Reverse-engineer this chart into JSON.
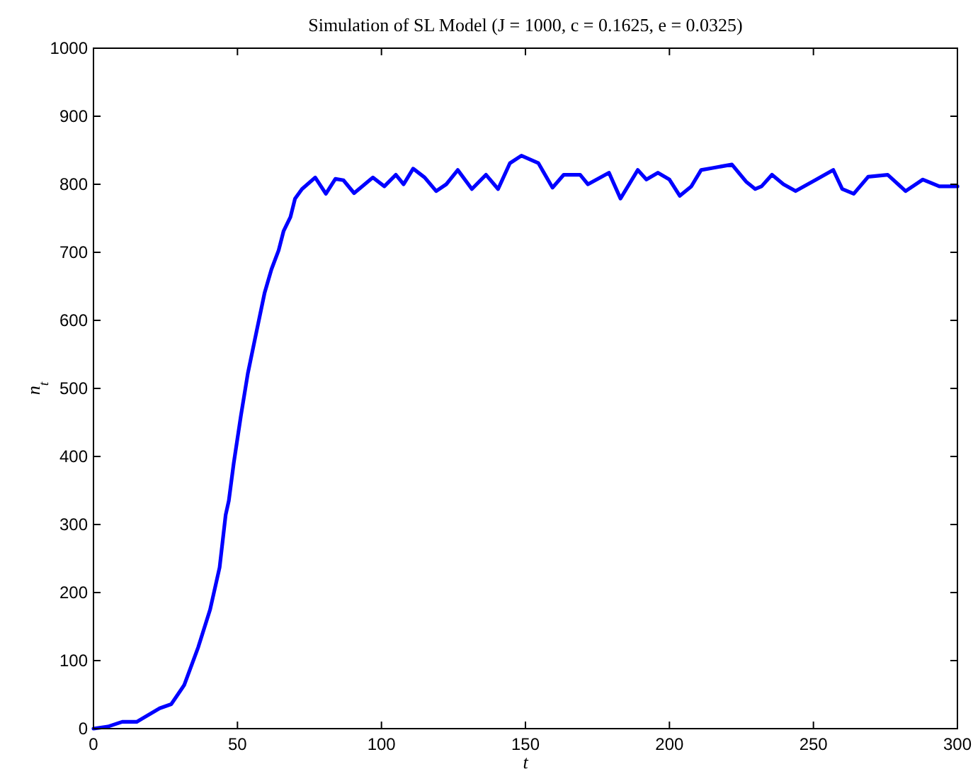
{
  "chart_data": {
    "type": "line",
    "title": "Simulation of SL Model (J = 1000, c = 0.1625, e = 0.0325)",
    "xlabel": "t",
    "ylabel": "n$_{t}$",
    "xlim": [
      0,
      300
    ],
    "ylim": [
      0,
      1000
    ],
    "xticks": [
      0,
      50,
      100,
      150,
      200,
      250,
      300
    ],
    "yticks": [
      0,
      100,
      200,
      300,
      400,
      500,
      600,
      700,
      800,
      900,
      1000
    ],
    "grid": false,
    "marker": "none",
    "line_style": "solid",
    "series": [
      {
        "color": "#0000ff",
        "x": [
          0,
          5,
          10,
          15,
          23,
          27,
          31.5,
          36.4,
          40.5,
          43.8,
          45.9,
          47,
          48.7,
          51.2,
          53.6,
          56,
          59.4,
          61.8,
          64.3,
          66,
          68.4,
          70,
          72.4,
          77,
          80.7,
          84,
          86.8,
          90.5,
          97,
          101,
          105,
          107.7,
          111,
          115,
          119,
          122.5,
          126.5,
          131.4,
          136.3,
          140.5,
          144.6,
          148.6,
          154.5,
          159.4,
          163.3,
          169,
          171.7,
          179,
          183,
          189,
          192,
          196,
          200,
          203.6,
          207.6,
          211,
          215,
          221.7,
          226.6,
          229.8,
          232,
          235.6,
          239.6,
          243.8,
          251,
          256.9,
          260,
          264,
          269,
          275.8,
          282,
          288,
          293.7,
          300
        ],
        "values": [
          0,
          3,
          10,
          10,
          30,
          36,
          64,
          120,
          175,
          237,
          314,
          335,
          390,
          460,
          522,
          571,
          640,
          675,
          703,
          731,
          752,
          779,
          793,
          810,
          786,
          808,
          806,
          787,
          810,
          797,
          814,
          800,
          823,
          810,
          790,
          800,
          821,
          793,
          814,
          793,
          831,
          842,
          831,
          795,
          814,
          814,
          800,
          817,
          779,
          821,
          807,
          817,
          807,
          783,
          797,
          821,
          824,
          829,
          804,
          793,
          797,
          814,
          800,
          790,
          807,
          821,
          793,
          786,
          811,
          814,
          790,
          807,
          797,
          797
        ]
      }
    ]
  }
}
